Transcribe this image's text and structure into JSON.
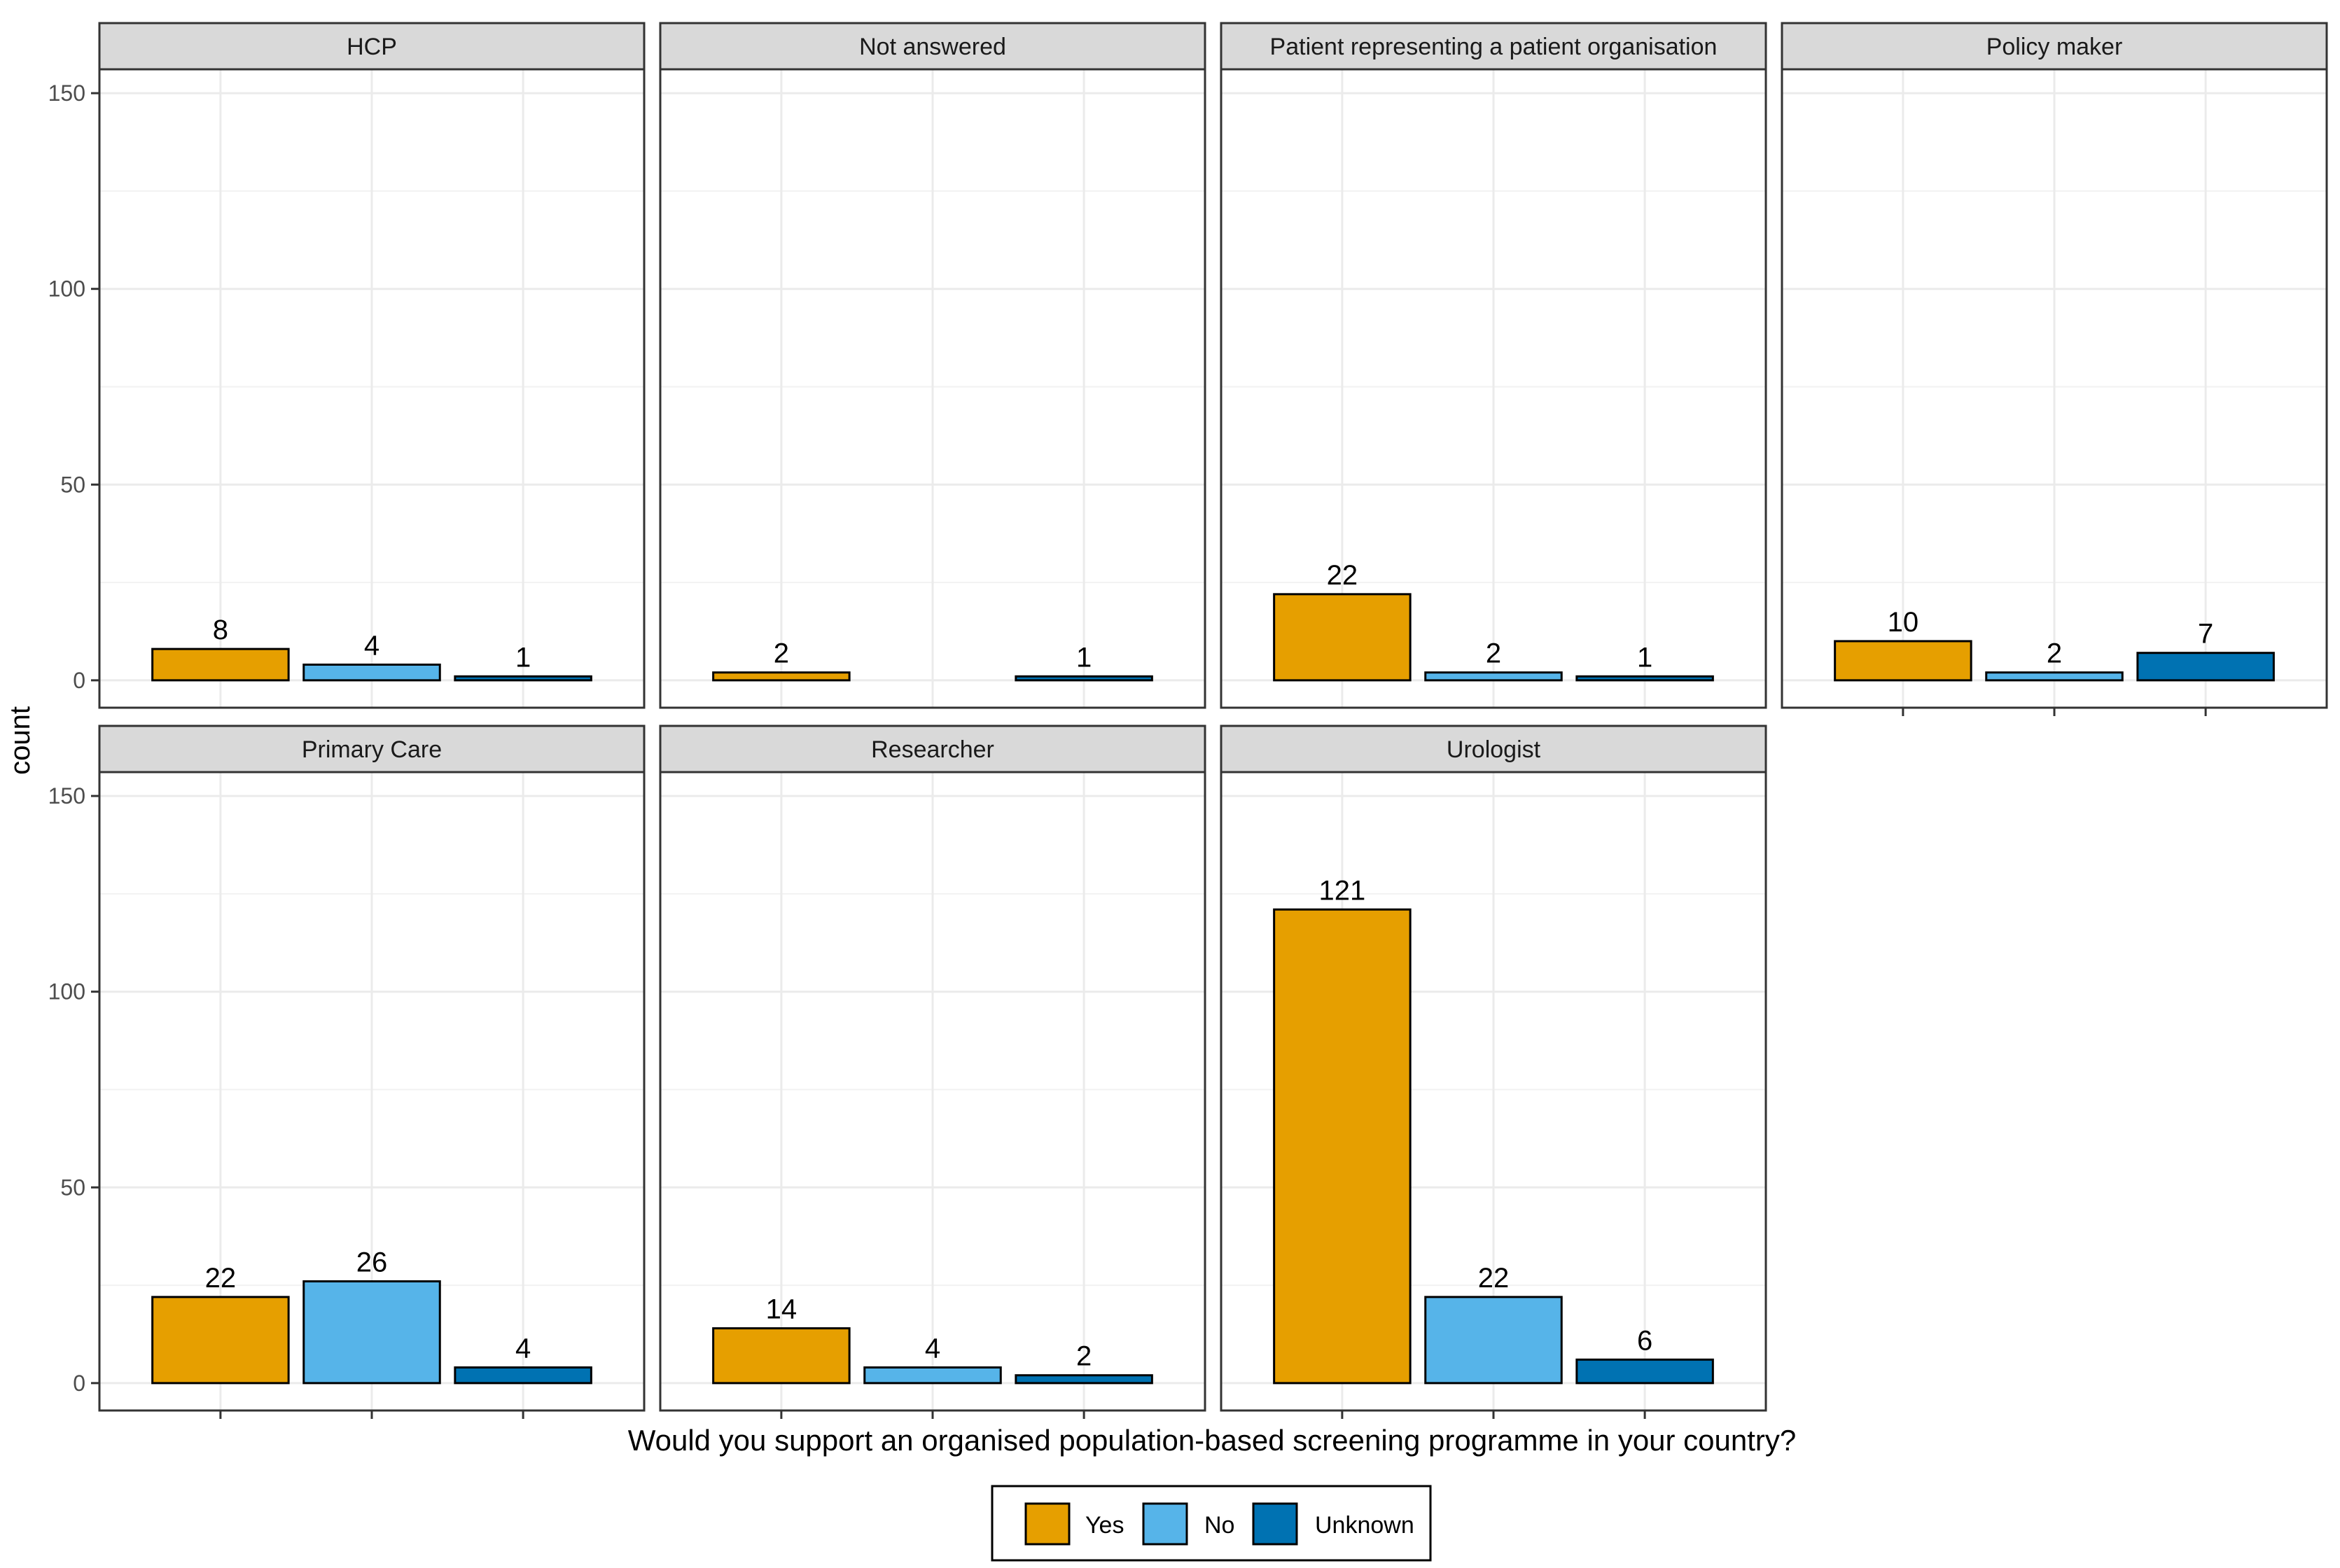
{
  "chart_data": {
    "type": "bar",
    "title": "",
    "xlabel": "Would you support an organised population-based screening programme in your country?",
    "ylabel": "count",
    "ylim": [
      0,
      150
    ],
    "yticks": [
      0,
      50,
      100,
      150
    ],
    "grid": true,
    "legend_position": "bottom",
    "categories": [
      "Yes",
      "No",
      "Unknown"
    ],
    "colors": {
      "Yes": "#E69F00",
      "No": "#56B4E9",
      "Unknown": "#0072B2"
    },
    "facets": [
      {
        "name": "HCP",
        "values": [
          8,
          4,
          1
        ]
      },
      {
        "name": "Not answered",
        "values": [
          2,
          0,
          1
        ]
      },
      {
        "name": "Patient representing a patient organisation",
        "values": [
          22,
          2,
          1
        ]
      },
      {
        "name": "Policy maker",
        "values": [
          10,
          2,
          7
        ]
      },
      {
        "name": "Primary Care",
        "values": [
          22,
          26,
          4
        ]
      },
      {
        "name": "Researcher",
        "values": [
          14,
          4,
          2
        ]
      },
      {
        "name": "Urologist",
        "values": [
          121,
          22,
          6
        ]
      }
    ]
  }
}
